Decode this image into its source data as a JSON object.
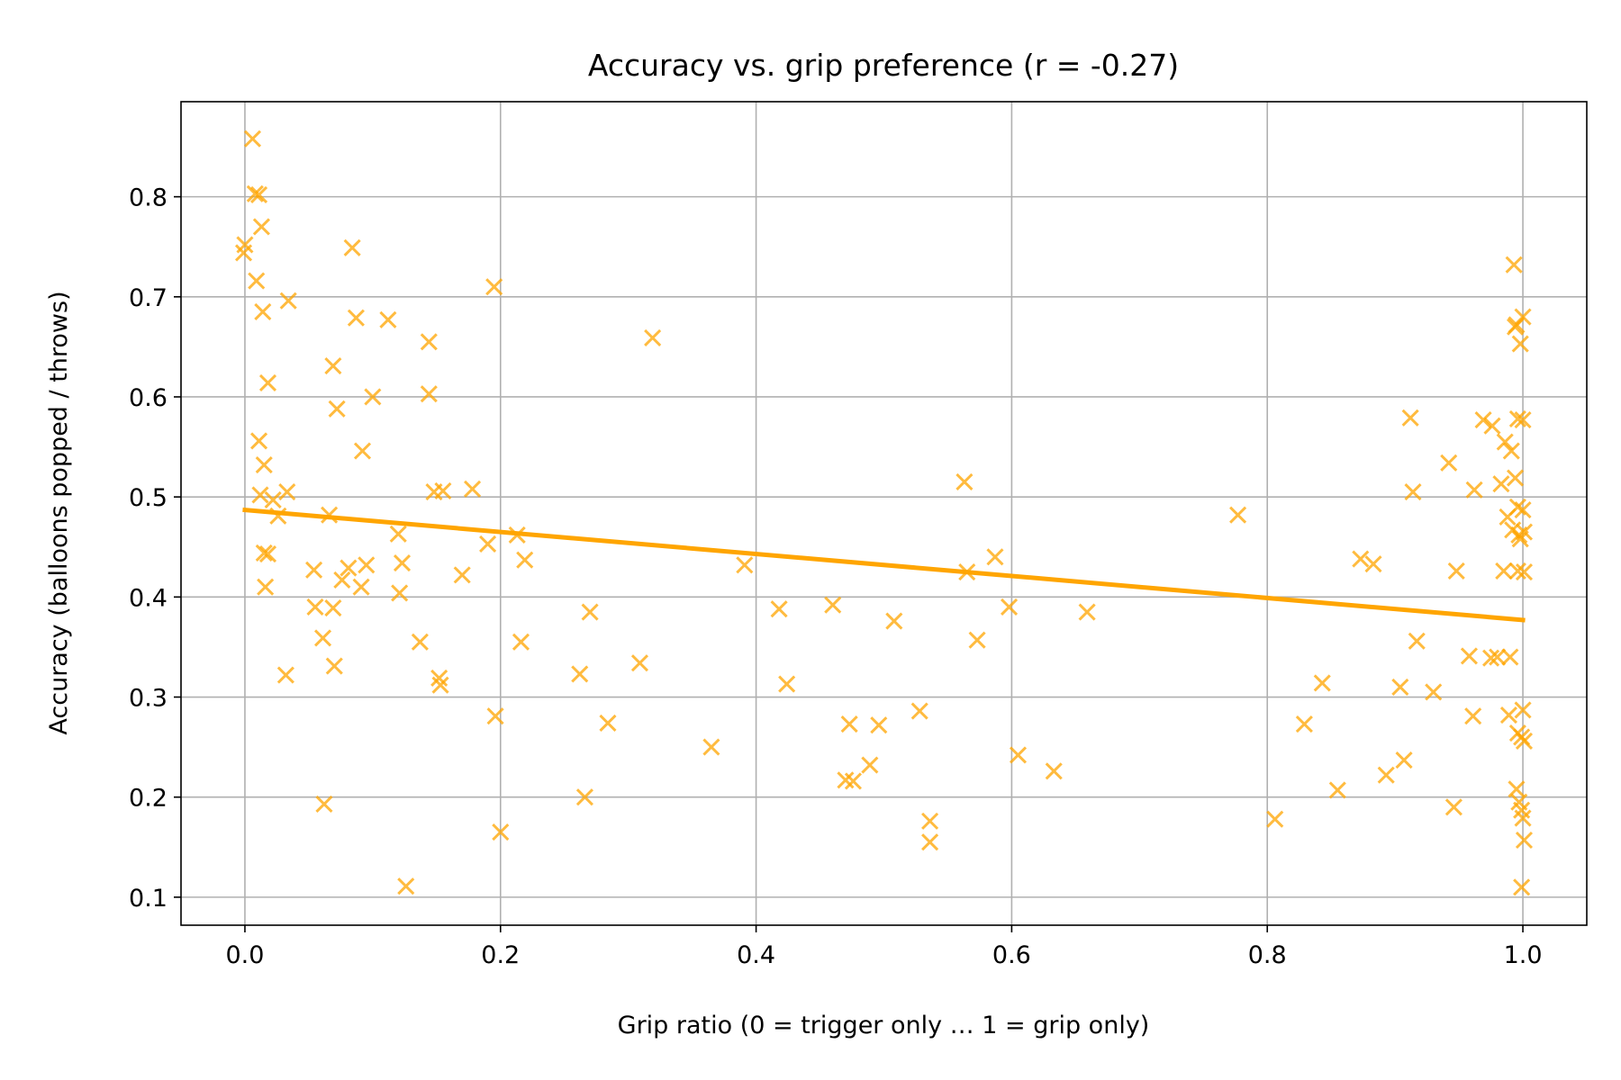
{
  "chart_data": {
    "type": "scatter",
    "title": "Accuracy vs. grip preference  (r = -0.27)",
    "xlabel": "Grip ratio (0 = trigger only … 1 = grip only)",
    "ylabel": "Accuracy (balloons popped / throws)",
    "xlim": [
      -0.05,
      1.05
    ],
    "ylim": [
      0.072,
      0.895
    ],
    "xticks": [
      0.0,
      0.2,
      0.4,
      0.6,
      0.8,
      1.0
    ],
    "xtick_labels": [
      "0.0",
      "0.2",
      "0.4",
      "0.6",
      "0.8",
      "1.0"
    ],
    "yticks": [
      0.1,
      0.2,
      0.3,
      0.4,
      0.5,
      0.6,
      0.7,
      0.8
    ],
    "ytick_labels": [
      "0.1",
      "0.2",
      "0.3",
      "0.4",
      "0.5",
      "0.6",
      "0.7",
      "0.8"
    ],
    "grid": true,
    "marker": "x",
    "marker_color": "#FFA500",
    "line_color": "#FFA500",
    "trend_line": {
      "x": [
        0.0,
        1.0
      ],
      "y": [
        0.487,
        0.377
      ]
    },
    "points": [
      [
        0.006,
        0.858
      ],
      [
        0.008,
        0.803
      ],
      [
        0.011,
        0.802
      ],
      [
        0.013,
        0.77
      ],
      [
        0.0,
        0.752
      ],
      [
        -0.001,
        0.744
      ],
      [
        0.009,
        0.716
      ],
      [
        0.014,
        0.685
      ],
      [
        0.034,
        0.696
      ],
      [
        0.018,
        0.614
      ],
      [
        0.011,
        0.556
      ],
      [
        0.015,
        0.532
      ],
      [
        0.012,
        0.502
      ],
      [
        0.022,
        0.497
      ],
      [
        0.033,
        0.505
      ],
      [
        0.026,
        0.481
      ],
      [
        0.015,
        0.444
      ],
      [
        0.018,
        0.443
      ],
      [
        0.016,
        0.41
      ],
      [
        0.032,
        0.322
      ],
      [
        0.084,
        0.749
      ],
      [
        0.087,
        0.679
      ],
      [
        0.112,
        0.677
      ],
      [
        0.069,
        0.631
      ],
      [
        0.072,
        0.588
      ],
      [
        0.1,
        0.6
      ],
      [
        0.092,
        0.546
      ],
      [
        0.054,
        0.427
      ],
      [
        0.066,
        0.482
      ],
      [
        0.081,
        0.429
      ],
      [
        0.095,
        0.432
      ],
      [
        0.076,
        0.417
      ],
      [
        0.091,
        0.41
      ],
      [
        0.055,
        0.39
      ],
      [
        0.069,
        0.389
      ],
      [
        0.061,
        0.359
      ],
      [
        0.07,
        0.331
      ],
      [
        0.062,
        0.193
      ],
      [
        0.12,
        0.463
      ],
      [
        0.123,
        0.434
      ],
      [
        0.121,
        0.404
      ],
      [
        0.137,
        0.355
      ],
      [
        0.126,
        0.111
      ],
      [
        0.144,
        0.655
      ],
      [
        0.144,
        0.603
      ],
      [
        0.148,
        0.505
      ],
      [
        0.155,
        0.506
      ],
      [
        0.178,
        0.508
      ],
      [
        0.17,
        0.422
      ],
      [
        0.152,
        0.319
      ],
      [
        0.153,
        0.312
      ],
      [
        0.195,
        0.71
      ],
      [
        0.19,
        0.453
      ],
      [
        0.213,
        0.462
      ],
      [
        0.219,
        0.437
      ],
      [
        0.216,
        0.355
      ],
      [
        0.196,
        0.281
      ],
      [
        0.2,
        0.165
      ],
      [
        0.319,
        0.659
      ],
      [
        0.27,
        0.385
      ],
      [
        0.262,
        0.323
      ],
      [
        0.309,
        0.334
      ],
      [
        0.284,
        0.274
      ],
      [
        0.266,
        0.2
      ],
      [
        0.365,
        0.25
      ],
      [
        0.391,
        0.432
      ],
      [
        0.418,
        0.388
      ],
      [
        0.424,
        0.313
      ],
      [
        0.46,
        0.392
      ],
      [
        0.473,
        0.273
      ],
      [
        0.47,
        0.217
      ],
      [
        0.476,
        0.216
      ],
      [
        0.489,
        0.232
      ],
      [
        0.496,
        0.272
      ],
      [
        0.508,
        0.376
      ],
      [
        0.528,
        0.286
      ],
      [
        0.536,
        0.176
      ],
      [
        0.536,
        0.155
      ],
      [
        0.563,
        0.515
      ],
      [
        0.565,
        0.425
      ],
      [
        0.573,
        0.357
      ],
      [
        0.587,
        0.44
      ],
      [
        0.598,
        0.39
      ],
      [
        0.605,
        0.242
      ],
      [
        0.633,
        0.226
      ],
      [
        0.659,
        0.385
      ],
      [
        0.777,
        0.482
      ],
      [
        0.806,
        0.178
      ],
      [
        0.829,
        0.273
      ],
      [
        0.843,
        0.314
      ],
      [
        0.855,
        0.207
      ],
      [
        0.873,
        0.438
      ],
      [
        0.883,
        0.433
      ],
      [
        0.893,
        0.222
      ],
      [
        0.904,
        0.31
      ],
      [
        0.907,
        0.237
      ],
      [
        0.912,
        0.579
      ],
      [
        0.914,
        0.505
      ],
      [
        0.917,
        0.356
      ],
      [
        0.93,
        0.305
      ],
      [
        0.942,
        0.534
      ],
      [
        0.948,
        0.426
      ],
      [
        0.946,
        0.19
      ],
      [
        0.958,
        0.341
      ],
      [
        0.962,
        0.507
      ],
      [
        0.961,
        0.281
      ],
      [
        0.969,
        0.577
      ],
      [
        0.976,
        0.571
      ],
      [
        0.975,
        0.339
      ],
      [
        0.98,
        0.34
      ],
      [
        0.983,
        0.513
      ],
      [
        0.985,
        0.426
      ],
      [
        0.986,
        0.555
      ],
      [
        0.988,
        0.48
      ],
      [
        0.989,
        0.282
      ],
      [
        0.99,
        0.34
      ],
      [
        0.991,
        0.546
      ],
      [
        0.992,
        0.467
      ],
      [
        0.993,
        0.732
      ],
      [
        0.994,
        0.67
      ],
      [
        0.995,
        0.672
      ],
      [
        0.996,
        0.578
      ],
      [
        0.994,
        0.519
      ],
      [
        0.996,
        0.49
      ],
      [
        0.997,
        0.462
      ],
      [
        0.998,
        0.458
      ],
      [
        0.996,
        0.426
      ],
      [
        0.995,
        0.208
      ],
      [
        0.997,
        0.195
      ],
      [
        0.996,
        0.264
      ],
      [
        0.998,
        0.653
      ],
      [
        0.999,
        0.26
      ],
      [
        1.0,
        0.68
      ],
      [
        1.0,
        0.577
      ],
      [
        1.0,
        0.487
      ],
      [
        1.001,
        0.465
      ],
      [
        1.001,
        0.425
      ],
      [
        1.0,
        0.287
      ],
      [
        1.001,
        0.256
      ],
      [
        0.999,
        0.187
      ],
      [
        1.0,
        0.179
      ],
      [
        1.001,
        0.157
      ],
      [
        0.999,
        0.11
      ]
    ]
  }
}
